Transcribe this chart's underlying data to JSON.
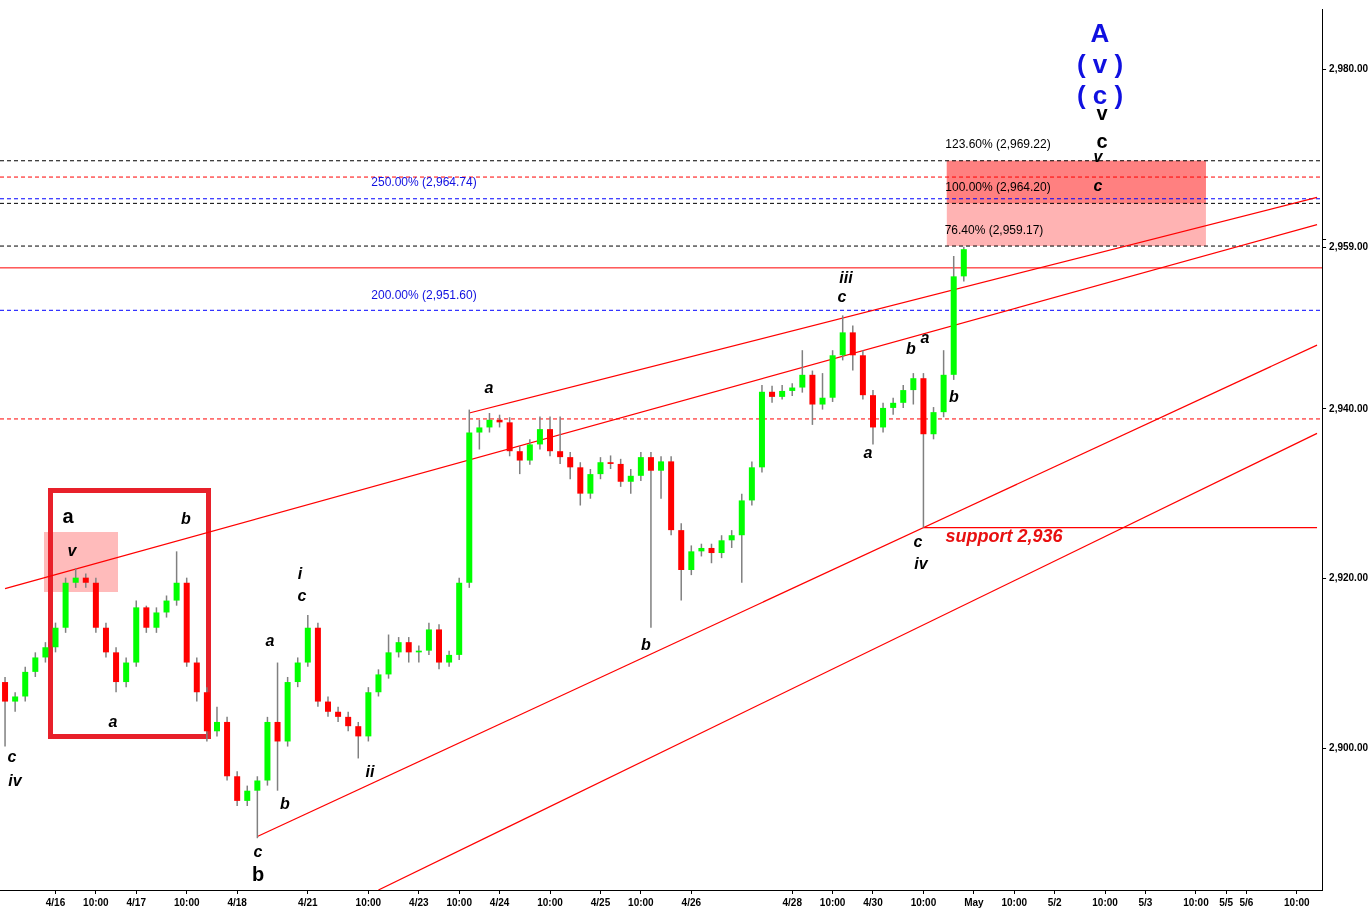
{
  "chart_data": {
    "type": "candlestick",
    "categories": [
      null,
      null,
      null,
      null,
      null,
      "4/16",
      null,
      null,
      null,
      "10:00",
      null,
      null,
      null,
      "4/17",
      null,
      null,
      null,
      null,
      "10:00",
      null,
      null,
      null,
      null,
      "4/18",
      null,
      null,
      null,
      null,
      null,
      null,
      "4/21",
      null,
      null,
      null,
      null,
      null,
      "10:00",
      null,
      null,
      null,
      null,
      "4/23",
      null,
      null,
      null,
      "10:00",
      null,
      null,
      null,
      "4/24",
      null,
      null,
      null,
      null,
      "10:00",
      null,
      null,
      null,
      null,
      "4/25",
      null,
      null,
      null,
      "10:00",
      null,
      null,
      null,
      null,
      "4/26",
      null,
      null,
      null,
      null,
      null,
      null,
      null,
      null,
      null,
      "4/28",
      null,
      null,
      null,
      "10:00",
      null,
      null,
      null,
      "4/30",
      null,
      null,
      null,
      null,
      "10:00",
      null,
      null,
      null,
      null,
      "May",
      null,
      null,
      null,
      "10:00",
      null,
      null,
      null,
      "5/2",
      null,
      null,
      null,
      null,
      "10:00",
      null,
      null,
      null,
      "5/3",
      null,
      null,
      null,
      null,
      "10:00",
      null,
      null,
      "5/5",
      null,
      "5/6",
      null,
      null,
      null,
      null,
      "10:00",
      null,
      null
    ],
    "ohlc": [
      [
        2907.8,
        2908.4,
        2900.2,
        2905.5
      ],
      [
        2905.5,
        2906.6,
        2904.3,
        2906.1
      ],
      [
        2906.1,
        2909.6,
        2905.5,
        2909.0
      ],
      [
        2909.0,
        2911.3,
        2908.4,
        2910.7
      ],
      [
        2910.7,
        2912.5,
        2910.1,
        2911.9
      ],
      [
        2911.9,
        2914.8,
        2911.3,
        2914.2
      ],
      [
        2914.2,
        2920.1,
        2913.6,
        2919.5
      ],
      [
        2919.5,
        2921.2,
        2918.9,
        2920.1
      ],
      [
        2920.1,
        2920.6,
        2918.9,
        2919.5
      ],
      [
        2919.5,
        2920.1,
        2913.6,
        2914.2
      ],
      [
        2914.2,
        2914.8,
        2910.7,
        2911.3
      ],
      [
        2911.3,
        2911.9,
        2906.6,
        2907.8
      ],
      [
        2907.8,
        2910.7,
        2907.2,
        2910.1
      ],
      [
        2910.1,
        2917.4,
        2909.6,
        2916.6
      ],
      [
        2916.6,
        2916.8,
        2913.6,
        2914.2
      ],
      [
        2914.2,
        2916.6,
        2913.6,
        2916.0
      ],
      [
        2916.0,
        2918.0,
        2915.4,
        2917.4
      ],
      [
        2917.4,
        2923.2,
        2916.8,
        2919.5
      ],
      [
        2919.5,
        2920.1,
        2909.6,
        2910.1
      ],
      [
        2910.1,
        2910.7,
        2905.5,
        2906.6
      ],
      [
        2906.6,
        2907.2,
        2900.8,
        2902.0
      ],
      [
        2902.0,
        2904.9,
        2901.4,
        2903.1
      ],
      [
        2903.1,
        2903.7,
        2896.2,
        2896.7
      ],
      [
        2896.7,
        2897.3,
        2893.2,
        2893.8
      ],
      [
        2893.8,
        2895.6,
        2893.2,
        2895.0
      ],
      [
        2895.0,
        2896.7,
        2889.4,
        2896.2
      ],
      [
        2896.2,
        2903.7,
        2895.6,
        2903.1
      ],
      [
        2903.1,
        2910.1,
        2895.0,
        2900.8
      ],
      [
        2900.8,
        2908.4,
        2900.2,
        2907.8
      ],
      [
        2907.8,
        2910.7,
        2907.2,
        2910.1
      ],
      [
        2910.1,
        2915.7,
        2909.6,
        2914.2
      ],
      [
        2914.2,
        2914.8,
        2904.9,
        2905.5
      ],
      [
        2905.5,
        2906.1,
        2903.7,
        2904.3
      ],
      [
        2904.3,
        2904.9,
        2903.1,
        2903.7
      ],
      [
        2903.7,
        2904.3,
        2902.0,
        2902.6
      ],
      [
        2902.6,
        2903.1,
        2898.8,
        2901.4
      ],
      [
        2901.4,
        2907.2,
        2900.8,
        2906.6
      ],
      [
        2906.6,
        2909.3,
        2906.1,
        2908.7
      ],
      [
        2908.7,
        2913.4,
        2908.2,
        2911.3
      ],
      [
        2911.3,
        2913.1,
        2910.7,
        2912.5
      ],
      [
        2912.5,
        2913.1,
        2910.1,
        2911.3
      ],
      [
        2911.3,
        2912.1,
        2910.1,
        2911.5
      ],
      [
        2911.5,
        2914.8,
        2911.0,
        2914.0
      ],
      [
        2914.0,
        2914.6,
        2909.3,
        2910.1
      ],
      [
        2910.1,
        2911.5,
        2909.6,
        2911.0
      ],
      [
        2911.0,
        2920.1,
        2910.4,
        2919.5
      ],
      [
        2919.5,
        2939.9,
        2918.9,
        2937.2
      ],
      [
        2937.2,
        2938.7,
        2935.2,
        2937.8
      ],
      [
        2937.8,
        2939.5,
        2937.2,
        2938.7
      ],
      [
        2938.7,
        2939.3,
        2937.8,
        2938.4
      ],
      [
        2938.4,
        2939.0,
        2934.4,
        2935.0
      ],
      [
        2935.0,
        2935.6,
        2932.3,
        2933.9
      ],
      [
        2933.9,
        2936.4,
        2933.4,
        2935.8
      ],
      [
        2935.8,
        2939.1,
        2935.2,
        2937.6
      ],
      [
        2937.6,
        2939.1,
        2934.4,
        2935.0
      ],
      [
        2935.0,
        2939.1,
        2933.5,
        2934.3
      ],
      [
        2934.3,
        2934.9,
        2931.7,
        2933.1
      ],
      [
        2933.1,
        2933.7,
        2928.6,
        2930.0
      ],
      [
        2930.0,
        2932.9,
        2929.4,
        2932.3
      ],
      [
        2932.3,
        2934.3,
        2931.7,
        2933.7
      ],
      [
        2933.7,
        2934.5,
        2932.9,
        2933.5
      ],
      [
        2933.5,
        2934.1,
        2930.8,
        2931.4
      ],
      [
        2931.4,
        2932.9,
        2930.0,
        2932.1
      ],
      [
        2932.1,
        2934.9,
        2931.5,
        2934.3
      ],
      [
        2934.3,
        2934.9,
        2914.2,
        2932.7
      ],
      [
        2932.7,
        2934.4,
        2929.4,
        2933.8
      ],
      [
        2933.8,
        2934.4,
        2925.1,
        2925.7
      ],
      [
        2925.7,
        2926.5,
        2917.4,
        2921.0
      ],
      [
        2921.0,
        2923.9,
        2920.4,
        2923.2
      ],
      [
        2923.2,
        2924.1,
        2922.6,
        2923.6
      ],
      [
        2923.6,
        2924.1,
        2921.8,
        2923.0
      ],
      [
        2923.0,
        2925.1,
        2922.4,
        2924.5
      ],
      [
        2924.5,
        2925.7,
        2923.6,
        2925.1
      ],
      [
        2925.1,
        2930.0,
        2919.5,
        2929.2
      ],
      [
        2929.2,
        2933.8,
        2928.6,
        2933.1
      ],
      [
        2933.1,
        2942.8,
        2932.5,
        2942.0
      ],
      [
        2942.0,
        2942.7,
        2940.7,
        2941.4
      ],
      [
        2941.4,
        2942.8,
        2941.1,
        2942.1
      ],
      [
        2942.1,
        2943.0,
        2941.5,
        2942.5
      ],
      [
        2942.5,
        2946.9,
        2941.9,
        2944.0
      ],
      [
        2944.0,
        2944.5,
        2938.1,
        2940.5
      ],
      [
        2940.5,
        2944.2,
        2939.9,
        2941.3
      ],
      [
        2941.3,
        2946.9,
        2940.8,
        2946.3
      ],
      [
        2946.3,
        2951.0,
        2945.7,
        2949.0
      ],
      [
        2949.0,
        2949.8,
        2944.5,
        2946.3
      ],
      [
        2946.3,
        2946.9,
        2941.1,
        2941.6
      ],
      [
        2941.6,
        2942.2,
        2935.8,
        2937.8
      ],
      [
        2937.8,
        2940.7,
        2937.2,
        2940.1
      ],
      [
        2940.1,
        2941.3,
        2939.3,
        2940.7
      ],
      [
        2940.7,
        2942.8,
        2940.1,
        2942.2
      ],
      [
        2942.2,
        2944.2,
        2940.5,
        2943.6
      ],
      [
        2943.6,
        2944.2,
        2926.0,
        2937.0
      ],
      [
        2937.0,
        2940.2,
        2936.4,
        2939.6
      ],
      [
        2939.6,
        2946.9,
        2939.0,
        2944.0
      ],
      [
        2944.0,
        2958.0,
        2943.4,
        2955.6
      ],
      [
        2955.6,
        2959.1,
        2955.0,
        2958.8
      ],
      null,
      null,
      null,
      null,
      null,
      null,
      null,
      null,
      null,
      null,
      null,
      null,
      null,
      null,
      null,
      null,
      null,
      null,
      null,
      null,
      null,
      null,
      null,
      null,
      null,
      null,
      null,
      null,
      null,
      null,
      null,
      null,
      null,
      null,
      null
    ],
    "colors": [
      "#ff0000",
      "#00ff00",
      "#00ff00",
      "#00ff00",
      "#00ff00",
      "#00ff00",
      "#00ff00",
      "#00ff00",
      "#ff0000",
      "#ff0000",
      "#ff0000",
      "#ff0000",
      "#00ff00",
      "#00ff00",
      "#ff0000",
      "#00ff00",
      "#00ff00",
      "#00ff00",
      "#ff0000",
      "#ff0000",
      "#ff0000",
      "#00ff00",
      "#ff0000",
      "#ff0000",
      "#00ff00",
      "#00ff00",
      "#00ff00",
      "#ff0000",
      "#00ff00",
      "#00ff00",
      "#00ff00",
      "#ff0000",
      "#ff0000",
      "#ff0000",
      "#ff0000",
      "#ff0000",
      "#00ff00",
      "#00ff00",
      "#00ff00",
      "#00ff00",
      "#ff0000",
      "#00ff00",
      "#00ff00",
      "#ff0000",
      "#00ff00",
      "#00ff00",
      "#00ff00",
      "#00ff00",
      "#00ff00",
      "#ff0000",
      "#ff0000",
      "#ff0000",
      "#00ff00",
      "#00ff00",
      "#ff0000",
      "#ff0000",
      "#ff0000",
      "#ff0000",
      "#00ff00",
      "#00ff00",
      "#ff0000",
      "#ff0000",
      "#00ff00",
      "#00ff00",
      "#ff0000",
      "#00ff00",
      "#ff0000",
      "#ff0000",
      "#00ff00",
      "#00ff00",
      "#ff0000",
      "#00ff00",
      "#00ff00",
      "#00ff00",
      "#00ff00",
      "#00ff00",
      "#ff0000",
      "#00ff00",
      "#00ff00",
      "#00ff00",
      "#ff0000",
      "#00ff00",
      "#00ff00",
      "#00ff00",
      "#ff0000",
      "#ff0000",
      "#ff0000",
      "#00ff00",
      "#00ff00",
      "#00ff00",
      "#00ff00",
      "#ff0000",
      "#00ff00",
      "#00ff00",
      "#00ff00",
      "#00ff00",
      null,
      null,
      null,
      null,
      null,
      null,
      null,
      null,
      null,
      null,
      null,
      null,
      null,
      null,
      null,
      null,
      null,
      null,
      null,
      null,
      null,
      null,
      null,
      null,
      null,
      null,
      null,
      null,
      null,
      null,
      null,
      null,
      null,
      null,
      null
    ],
    "series": [
      {
        "type": "line",
        "color": "#ff0000",
        "values": [
          2918.8,
          null,
          null,
          null,
          null,
          null,
          null,
          null,
          null,
          null,
          null,
          null,
          null,
          null,
          null,
          null,
          null,
          null,
          null,
          null,
          null,
          null,
          null,
          null,
          null,
          null,
          null,
          null,
          null,
          null,
          null,
          null,
          null,
          null,
          null,
          null,
          null,
          null,
          null,
          null,
          null,
          null,
          null,
          null,
          null,
          null,
          null,
          null,
          null,
          null,
          null,
          null,
          null,
          null,
          null,
          null,
          null,
          null,
          null,
          null,
          null,
          null,
          null,
          null,
          null,
          null,
          null,
          null,
          null,
          null,
          null,
          null,
          null,
          null,
          null,
          null,
          null,
          null,
          null,
          null,
          null,
          null,
          null,
          null,
          null,
          null,
          null,
          null,
          null,
          null,
          null,
          null,
          null,
          null,
          null,
          null,
          null,
          null,
          null,
          null,
          null,
          null,
          null,
          null,
          null,
          null,
          null,
          null,
          null,
          null,
          null,
          null,
          null,
          null,
          null,
          null,
          null,
          null,
          null,
          null,
          null,
          null,
          null,
          null,
          null,
          null,
          null,
          null,
          null,
          null,
          2961.7
        ]
      },
      {
        "type": "line",
        "color": "#ff0000",
        "values": [
          null,
          null,
          null,
          null,
          null,
          null,
          null,
          null,
          null,
          null,
          null,
          null,
          null,
          null,
          null,
          null,
          null,
          null,
          null,
          null,
          null,
          null,
          null,
          null,
          null,
          null,
          null,
          null,
          null,
          null,
          null,
          null,
          null,
          null,
          null,
          null,
          null,
          null,
          null,
          null,
          null,
          null,
          null,
          null,
          null,
          null,
          2939.5,
          null,
          null,
          null,
          null,
          null,
          null,
          null,
          null,
          null,
          null,
          null,
          null,
          null,
          null,
          null,
          null,
          null,
          null,
          null,
          null,
          null,
          null,
          null,
          null,
          null,
          null,
          null,
          null,
          null,
          null,
          null,
          null,
          null,
          null,
          null,
          null,
          null,
          null,
          null,
          null,
          null,
          null,
          null,
          null,
          null,
          null,
          null,
          null,
          null,
          null,
          null,
          null,
          null,
          null,
          null,
          null,
          null,
          null,
          null,
          null,
          null,
          null,
          null,
          null,
          null,
          null,
          null,
          null,
          null,
          null,
          null,
          null,
          null,
          null,
          null,
          null,
          null,
          null,
          null,
          null,
          null,
          null,
          null,
          2964.9
        ]
      },
      {
        "type": "line",
        "color": "#ff0000",
        "values": [
          null,
          null,
          null,
          null,
          null,
          null,
          null,
          null,
          null,
          null,
          null,
          null,
          null,
          null,
          null,
          null,
          null,
          null,
          null,
          null,
          null,
          null,
          null,
          null,
          null,
          2889.6,
          null,
          null,
          null,
          null,
          null,
          null,
          null,
          null,
          null,
          null,
          null,
          null,
          null,
          null,
          null,
          null,
          null,
          null,
          null,
          null,
          null,
          null,
          null,
          null,
          null,
          null,
          null,
          null,
          null,
          null,
          null,
          null,
          null,
          null,
          null,
          null,
          null,
          null,
          null,
          null,
          null,
          null,
          null,
          null,
          null,
          null,
          null,
          null,
          null,
          null,
          null,
          null,
          null,
          null,
          null,
          null,
          null,
          null,
          null,
          null,
          null,
          null,
          null,
          null,
          null,
          null,
          null,
          null,
          null,
          null,
          null,
          null,
          null,
          null,
          null,
          null,
          null,
          null,
          null,
          null,
          null,
          null,
          null,
          null,
          null,
          null,
          null,
          null,
          null,
          null,
          null,
          null,
          null,
          null,
          null,
          null,
          null,
          null,
          null,
          null,
          null,
          null,
          null,
          null,
          2947.5
        ]
      },
      {
        "type": "line",
        "color": "#ff0000",
        "values": [
          null,
          null,
          null,
          null,
          null,
          null,
          null,
          null,
          null,
          null,
          null,
          null,
          null,
          null,
          null,
          null,
          null,
          null,
          null,
          null,
          null,
          null,
          null,
          null,
          null,
          null,
          null,
          null,
          null,
          null,
          null,
          null,
          null,
          null,
          null,
          null,
          null,
          2883.3,
          null,
          null,
          null,
          null,
          null,
          null,
          null,
          null,
          null,
          null,
          null,
          null,
          null,
          null,
          null,
          null,
          null,
          null,
          null,
          null,
          null,
          null,
          null,
          null,
          null,
          null,
          null,
          null,
          null,
          null,
          null,
          null,
          null,
          null,
          null,
          null,
          null,
          null,
          null,
          null,
          null,
          null,
          null,
          null,
          null,
          null,
          null,
          null,
          null,
          null,
          null,
          null,
          null,
          null,
          null,
          null,
          null,
          null,
          null,
          null,
          null,
          null,
          null,
          null,
          null,
          null,
          null,
          null,
          null,
          null,
          null,
          null,
          null,
          null,
          null,
          null,
          null,
          null,
          null,
          null,
          null,
          null,
          null,
          null,
          null,
          null,
          null,
          null,
          null,
          null,
          null,
          null,
          2937.1
        ]
      },
      {
        "type": "line",
        "color": "#ff0000",
        "values": [
          null,
          null,
          null,
          null,
          null,
          null,
          null,
          null,
          null,
          null,
          null,
          null,
          null,
          null,
          null,
          null,
          null,
          null,
          null,
          null,
          null,
          null,
          null,
          null,
          null,
          null,
          null,
          null,
          null,
          null,
          null,
          null,
          null,
          null,
          null,
          null,
          null,
          null,
          null,
          null,
          null,
          null,
          null,
          null,
          null,
          null,
          null,
          null,
          null,
          null,
          null,
          null,
          null,
          null,
          null,
          null,
          null,
          null,
          null,
          null,
          null,
          null,
          null,
          null,
          null,
          null,
          null,
          null,
          null,
          null,
          null,
          null,
          null,
          null,
          null,
          null,
          null,
          null,
          null,
          null,
          null,
          null,
          null,
          null,
          null,
          null,
          null,
          null,
          null,
          null,
          null,
          2926.0,
          null,
          null,
          null,
          null,
          null,
          null,
          null,
          null,
          null,
          null,
          null,
          null,
          null,
          null,
          null,
          null,
          null,
          null,
          null,
          null,
          null,
          null,
          null,
          null,
          null,
          null,
          null,
          null,
          null,
          null,
          null,
          null,
          null,
          null,
          null,
          null,
          null,
          null,
          2926.0
        ]
      }
    ],
    "ref_lines": [
      {
        "axis": "y",
        "value": 2969.22,
        "color": "#000000",
        "line_style": "dashed"
      },
      {
        "axis": "y",
        "value": 2967.3,
        "color": "#ff0000",
        "line_style": "dashed"
      },
      {
        "axis": "y",
        "value": 2964.74,
        "color": "#0000ff",
        "line_style": "dashed"
      },
      {
        "axis": "y",
        "value": 2964.2,
        "color": "#000000",
        "line_style": "dashed"
      },
      {
        "axis": "y",
        "value": 2959.17,
        "color": "#000000",
        "line_style": "dashed"
      },
      {
        "axis": "y",
        "value": 2951.6,
        "color": "#0000ff",
        "line_style": "dashed"
      },
      {
        "axis": "y",
        "value": 2938.8,
        "color": "#ff0000",
        "line_style": "dashed"
      },
      {
        "axis": "y",
        "value": 2956.6,
        "color": "#ff0000",
        "line_style": "solid"
      }
    ],
    "bands": [
      {
        "axis": "y",
        "from": 2959.17,
        "to": 2969.22,
        "color": "#ffb3b3"
      },
      {
        "axis": "y",
        "from": 2964.2,
        "to": 2969.22,
        "color": "#ff8080"
      }
    ],
    "annotations": [
      "c",
      "iv",
      "a",
      "v",
      "b",
      "a",
      "a",
      "i",
      "c",
      "b",
      "c",
      "b",
      "ii",
      "a",
      "b",
      "iii",
      "c",
      "a",
      "b",
      "a",
      "b",
      "c",
      "iv",
      "support 2,936",
      "A",
      "( v )",
      "( c )",
      "v",
      "c",
      "v",
      "c",
      "123.60% (2,969.22)",
      "100.00% (2,964.20)",
      "76.40% (2,959.17)",
      "250.00% (2,964.74)",
      "200.00% (2,951.60)"
    ],
    "ylim": [
      2883.3,
      2987.1
    ],
    "yticks": [
      {
        "value": 2900,
        "label": "2,900.00"
      },
      {
        "value": 2920,
        "label": "2,920.00"
      },
      {
        "value": 2940,
        "label": "2,940.00"
      },
      {
        "value": 2959,
        "label": "2,959.00"
      },
      {
        "value": 2960,
        "label": null
      },
      {
        "value": 2980,
        "label": "2,980.00"
      }
    ]
  }
}
